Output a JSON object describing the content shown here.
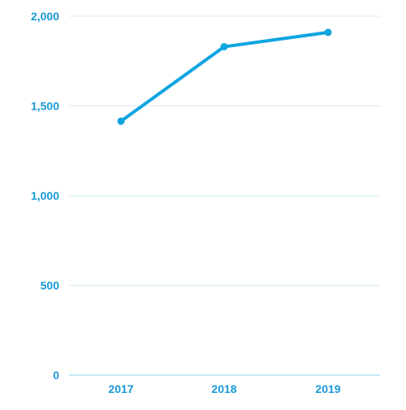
{
  "colors": {
    "line": "#0ea5e0",
    "axis_text": "#1a9ad6",
    "grid": "#d7ecf8",
    "baseline": "#8fd0f0"
  },
  "chart_data": {
    "type": "line",
    "title": "",
    "xlabel": "",
    "ylabel": "",
    "categories": [
      "2017",
      "2018",
      "2019"
    ],
    "series": [
      {
        "values": [
          1415,
          1830,
          1910
        ]
      }
    ],
    "ylim": [
      0,
      2000
    ],
    "y_ticks": [
      0,
      500,
      1000,
      1500,
      2000
    ],
    "y_tick_labels": [
      "0",
      "500",
      "1,000",
      "1,500",
      "2,000"
    ],
    "grid": true,
    "legend": "none"
  }
}
